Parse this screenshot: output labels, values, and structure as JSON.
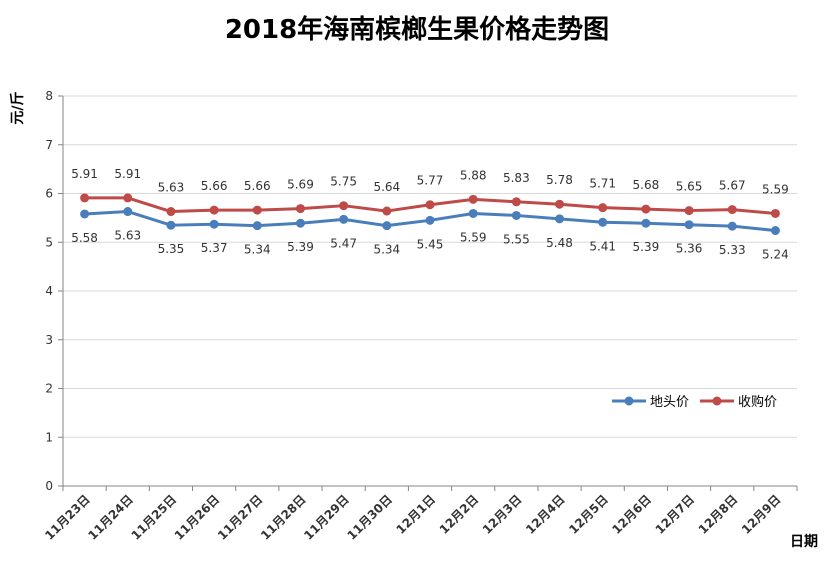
{
  "chart_data": {
    "type": "line",
    "title": "2018年海南槟榔生果价格走势图",
    "xlabel": "日期",
    "ylabel": "元/斤",
    "ylim": [
      0,
      8
    ],
    "yticks": [
      0,
      1,
      2,
      3,
      4,
      5,
      6,
      7,
      8
    ],
    "grid": true,
    "legend_position": "right",
    "categories": [
      "11月23日",
      "11月24日",
      "11月25日",
      "11月26日",
      "11月27日",
      "11月28日",
      "11月29日",
      "11月30日",
      "12月1日",
      "12月2日",
      "12月3日",
      "12月4日",
      "12月5日",
      "12月6日",
      "12月7日",
      "12月8日",
      "12月9日"
    ],
    "series": [
      {
        "name": "地头价",
        "color": "#4a7ebb",
        "label_position": "below",
        "values": [
          5.58,
          5.63,
          5.35,
          5.37,
          5.34,
          5.39,
          5.47,
          5.34,
          5.45,
          5.59,
          5.55,
          5.48,
          5.41,
          5.39,
          5.36,
          5.33,
          5.24
        ]
      },
      {
        "name": "收购价",
        "color": "#be4b48",
        "label_position": "above",
        "values": [
          5.91,
          5.91,
          5.63,
          5.66,
          5.66,
          5.69,
          5.75,
          5.64,
          5.77,
          5.88,
          5.83,
          5.78,
          5.71,
          5.68,
          5.65,
          5.67,
          5.59
        ]
      }
    ]
  }
}
